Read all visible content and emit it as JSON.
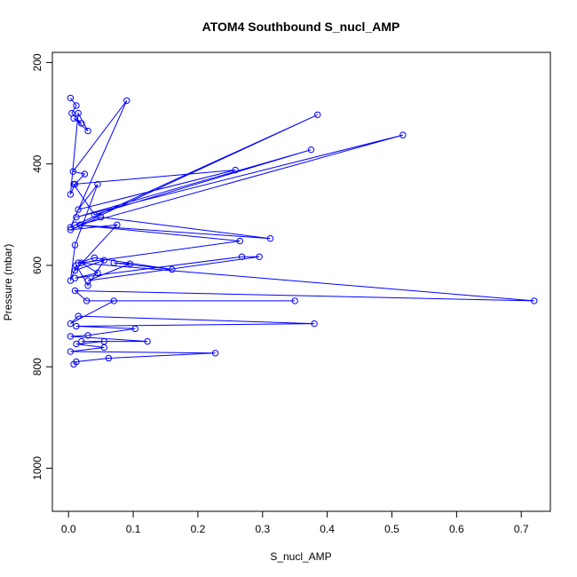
{
  "chart_data": {
    "type": "line",
    "title": "ATOM4 Southbound S_nucl_AMP",
    "xlabel": "S_nucl_AMP",
    "ylabel": "Pressure (mbar)",
    "xlim": [
      -0.025,
      0.745
    ],
    "ylim": [
      1085,
      180
    ],
    "y_reversed": true,
    "grid": false,
    "legend": "none",
    "x_ticks": [
      0.0,
      0.1,
      0.2,
      0.3,
      0.4,
      0.5,
      0.6,
      0.7
    ],
    "x_tick_labels": [
      "0.0",
      "0.1",
      "0.2",
      "0.3",
      "0.4",
      "0.5",
      "0.6",
      "0.7"
    ],
    "y_ticks": [
      200,
      400,
      600,
      800,
      1000
    ],
    "y_tick_labels": [
      "200",
      "400",
      "600",
      "800",
      "1000"
    ],
    "series": [
      {
        "color": "#0000ff",
        "marker": "open-circle",
        "x": [
          0.003,
          0.012,
          0.005,
          0.02,
          0.008,
          0.03,
          0.015,
          0.003,
          0.01,
          0.025,
          0.007,
          0.09,
          0.003,
          0.385,
          0.018,
          0.517,
          0.012,
          0.375,
          0.04,
          0.008,
          0.258,
          0.015,
          0.045,
          0.01,
          0.003,
          0.012,
          0.03,
          0.055,
          0.01,
          0.075,
          0.003,
          0.05,
          0.312,
          0.01,
          0.265,
          0.02,
          0.045,
          0.01,
          0.268,
          0.295,
          0.03,
          0.095,
          0.07,
          0.16,
          0.04,
          0.015,
          0.72,
          0.01,
          0.028,
          0.35,
          0.07,
          0.003,
          0.015,
          0.38,
          0.012,
          0.103,
          0.03,
          0.003,
          0.122,
          0.02,
          0.055,
          0.012,
          0.055,
          0.003,
          0.227,
          0.062,
          0.012,
          0.008
        ],
        "y": [
          270,
          285,
          300,
          320,
          310,
          335,
          300,
          460,
          440,
          420,
          415,
          275,
          525,
          303,
          520,
          343,
          505,
          372,
          500,
          440,
          412,
          490,
          440,
          560,
          630,
          600,
          640,
          590,
          610,
          520,
          530,
          505,
          547,
          520,
          552,
          595,
          615,
          625,
          583,
          583,
          630,
          597,
          595,
          608,
          585,
          595,
          670,
          650,
          670,
          670,
          670,
          715,
          700,
          715,
          720,
          725,
          738,
          740,
          750,
          750,
          750,
          755,
          762,
          770,
          773,
          783,
          790,
          795
        ]
      }
    ]
  }
}
